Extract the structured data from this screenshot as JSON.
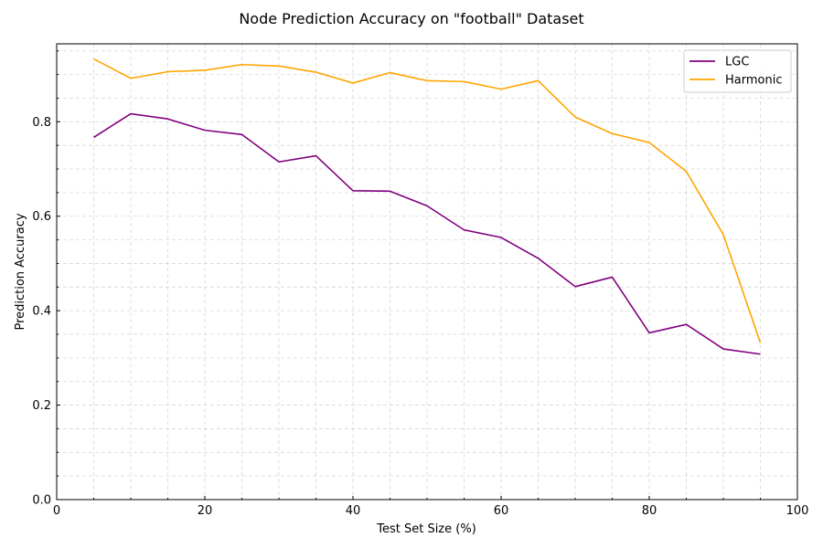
{
  "chart_data": {
    "type": "line",
    "title": "Node Prediction Accuracy on \"football\" Dataset",
    "xlabel": "Test Set Size (%)",
    "ylabel": "Prediction Accuracy",
    "xlim": [
      0,
      100
    ],
    "ylim": [
      0,
      0.965
    ],
    "xticks": [
      0,
      20,
      40,
      60,
      80,
      100
    ],
    "yticks": [
      0.0,
      0.2,
      0.4,
      0.6,
      0.8
    ],
    "ytick_labels": [
      "0.0",
      "0.2",
      "0.4",
      "0.6",
      "0.8"
    ],
    "xtick_labels": [
      "0",
      "20",
      "40",
      "60",
      "80",
      "100"
    ],
    "grid": true,
    "legend_position": "top-right",
    "x": [
      5,
      10,
      15,
      20,
      25,
      30,
      35,
      40,
      45,
      50,
      55,
      60,
      65,
      70,
      75,
      80,
      85,
      90,
      95
    ],
    "series": [
      {
        "name": "LGC",
        "color": "#800080",
        "values": [
          0.767,
          0.817,
          0.806,
          0.782,
          0.773,
          0.715,
          0.728,
          0.654,
          0.653,
          0.622,
          0.571,
          0.555,
          0.511,
          0.451,
          0.471,
          0.353,
          0.371,
          0.319,
          0.308
        ]
      },
      {
        "name": "Harmonic",
        "color": "#FFA500",
        "values": [
          0.933,
          0.892,
          0.906,
          0.909,
          0.921,
          0.918,
          0.905,
          0.882,
          0.904,
          0.887,
          0.885,
          0.869,
          0.887,
          0.81,
          0.775,
          0.756,
          0.695,
          0.561,
          0.332
        ]
      }
    ]
  }
}
